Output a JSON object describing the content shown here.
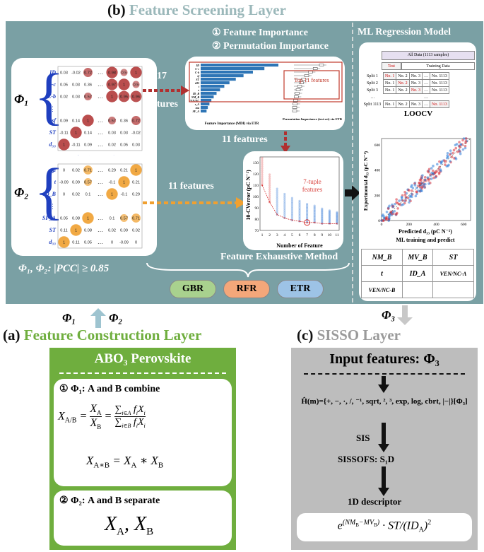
{
  "panel_b": {
    "letter": "(b)",
    "title": "Feature Screening Layer",
    "importance_1": "① Feature Importance",
    "importance_2": "② Permutation Importance",
    "features_17_a": "17",
    "features_17_b": "features",
    "features_11_down": "11 features",
    "features_11_mid": "11 features",
    "top11": "Top 11 features",
    "mdi_xlabel": "Feature Importance (MDI) via ETR",
    "perm_xlabel": "Permutation Importance (test set) via ETR",
    "phi1": "Φ₁",
    "phi2": "Φ₂",
    "pcc": "Φ₁, Φ₂: |PCC| ≥ 0.85",
    "exhaustive": "Feature Exhaustive Method",
    "tuple_label_1": "7-tuple",
    "tuple_label_2": "features",
    "cv_ylabel": "10-CVerror (pC N⁻¹)",
    "cv_xlabel": "Number of Feature",
    "models": [
      "GBR",
      "RFR",
      "ETR"
    ]
  },
  "matrix1": {
    "rows": [
      "ID",
      "C-c",
      "C-b",
      "⋮",
      "sf",
      "ST",
      "d₃₃"
    ],
    "cols": [
      "d₃₃",
      "ST",
      "sf",
      "…",
      "C-b",
      "C-c",
      "ID"
    ],
    "values": [
      [
        "0.03",
        "-0.02",
        "0.72",
        "",
        "0.98",
        "0.5",
        "1"
      ],
      [
        "0.05",
        "0.03",
        "0.36",
        "",
        "0.97",
        "1",
        "0.5"
      ],
      [
        "0.02",
        "0.03",
        "0.57",
        "",
        "1",
        "0.95",
        "0.96"
      ],
      [
        "0.09",
        "0.14",
        "1",
        "",
        "0.57",
        "0.36",
        "0.72"
      ],
      [
        "-0.11",
        "1",
        "0.14",
        "",
        "0.03",
        "0.03",
        "-0.02"
      ],
      [
        "1",
        "-0.11",
        "0.09",
        "",
        "0.02",
        "0.05",
        "0.03"
      ]
    ]
  },
  "matrix2": {
    "rows": [
      "μ",
      "t",
      "ID_B",
      "⋮",
      "SF_A",
      "ST",
      "d₃₃"
    ],
    "cols": [
      "d₃₃",
      "ST",
      "SF_A",
      "…",
      "ID_B",
      "t",
      "μ"
    ],
    "values": [
      [
        "0",
        "0.02",
        "0.71",
        "",
        "0.29",
        "0.21",
        "1"
      ],
      [
        "-0.09",
        "0.09",
        "0.57",
        "",
        "-0.1",
        "1",
        "0.21"
      ],
      [
        "0",
        "0.02",
        "0.1",
        "",
        "1",
        "-0.1",
        "0.29"
      ],
      [
        "0.05",
        "0.08",
        "1",
        "",
        "0.1",
        "0.57",
        "0.71"
      ],
      [
        "0.11",
        "1",
        "0.08",
        "",
        "0.02",
        "0.09",
        "0.02"
      ],
      [
        "1",
        "0.11",
        "0.05",
        "",
        "0",
        "-0.09",
        "0"
      ]
    ]
  },
  "mdi_features": [
    "ID",
    "C-c",
    "C-b",
    "sf",
    "ST",
    "d33",
    "t",
    "e",
    "ID_B",
    "NM_B",
    "VEN/NC",
    "r_A",
    "mu",
    "SF_A"
  ],
  "ml_model": {
    "title": "ML Regression Model",
    "all_data": "All Data (1113 samples)",
    "test": "Test",
    "training": "Training Data",
    "splits": [
      "Split 1",
      "Split 2",
      "Split 3",
      "…",
      "Split 1113"
    ],
    "cells": [
      "No. 1",
      "No. 2",
      "No. 3",
      "…",
      "No. 1113"
    ],
    "loocv": "LOOCV",
    "scatter_ylabel": "Experimental d₃₃ (pC N⁻¹)",
    "scatter_xlabel": "Predicted d₃₃ (pC N⁻¹)",
    "scatter_caption": "ML training and predict",
    "features": [
      "NM_B",
      "MV_B",
      "ST",
      "t",
      "ID_A",
      "VEN/NC-A",
      "VEN/NC-B",
      "",
      ""
    ],
    "phi3": "Φ₃"
  },
  "panel_a": {
    "letter": "(a)",
    "title": "Feature Construction Layer",
    "phi1": "Φ₁",
    "phi2": "Φ₂",
    "box_title": "ABO₃ Perovskite",
    "combine": "① Φ₁: A and B combine",
    "eq1": "X_A/B = X_A / X_B = ∑ f_i X_i / ∑ f_i X_i",
    "eq2": "X_A*B = X_A * X_B",
    "separate": "② Φ₂: A and B separate",
    "eq3": "X_A, X_B"
  },
  "panel_c": {
    "letter": "(c)",
    "title": "SISSO Layer",
    "input": "Input features: Φ₃",
    "operators": "Ĥ(m)={+, −, ·, /, ⁻¹, sqrt, ², ³, exp, log, cbrt, |−|}[Φ₃]",
    "sis": "SIS",
    "sissofs": "SISSOFS: S₁D",
    "descriptor": "1D descriptor",
    "formula": "e^(NM_B − MV_B) · ST/(ID_A)²"
  },
  "chart_data": {
    "type": "scatter",
    "xlabel": "Number of Feature",
    "ylabel": "10-CVerror (pC N⁻¹)",
    "x": [
      1,
      2,
      3,
      4,
      5,
      6,
      7,
      8,
      9,
      10,
      11
    ],
    "min_error": [
      110,
      95,
      84,
      81,
      79,
      78,
      77,
      77,
      76,
      76,
      76
    ],
    "xlim": [
      1,
      11
    ],
    "ylim": [
      70,
      135
    ],
    "highlight_x": 7
  },
  "colors": {
    "teal": "#7aa0a4",
    "green": "#6fae3e",
    "grey": "#bdbdbd",
    "red_arrow": "#c0392b",
    "orange_arrow": "#f0a030"
  }
}
